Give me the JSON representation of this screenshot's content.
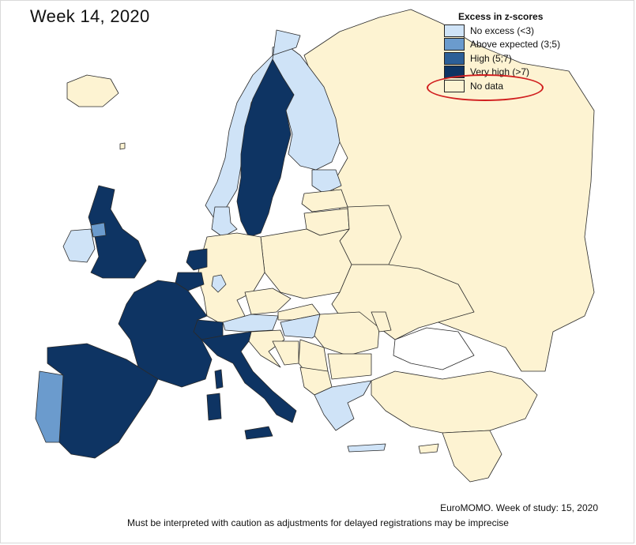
{
  "title": "Week 14, 2020",
  "legend": {
    "title": "Excess in z-scores",
    "items": [
      {
        "label": "No excess (<3)",
        "color": "#cfe3f7"
      },
      {
        "label": "Above expected (3;5)",
        "color": "#6b9bcd"
      },
      {
        "label": "High (5;7)",
        "color": "#2c5f97"
      },
      {
        "label": "Very high (>7)",
        "color": "#0e3463"
      },
      {
        "label": "No data",
        "color": "#fdf3d2"
      }
    ],
    "highlighted_item": "No data"
  },
  "source_text": "EuroMOMO. Week of study: 15, 2020",
  "caveat_text": "Must be interpreted with caution as adjustments for delayed registrations may be imprecise",
  "colors": {
    "no_excess": "#cfe3f7",
    "above_expected": "#6b9bcd",
    "high": "#2c5f97",
    "very_high": "#0e3463",
    "no_data": "#fdf3d2",
    "highlight": "#d11f1f"
  }
}
